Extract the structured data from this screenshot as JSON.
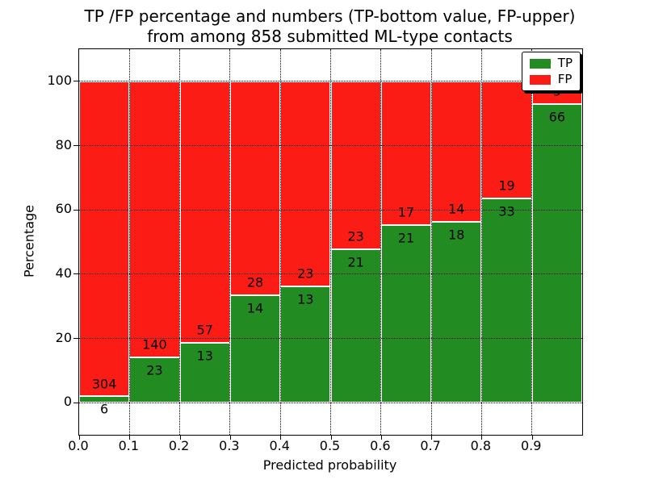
{
  "title": {
    "line1": "TP /FP percentage and numbers (TP-bottom value, FP-upper)",
    "line2": "from among 858 submitted ML-type contacts"
  },
  "axes": {
    "xlabel": "Predicted probability",
    "ylabel": "Percentage"
  },
  "legend": {
    "position": "upper right",
    "entries": [
      {
        "label": "TP",
        "color": "#228b22"
      },
      {
        "label": "FP",
        "color": "#fb1d15"
      }
    ]
  },
  "colors": {
    "tp": "#228b22",
    "fp": "#fb1d15",
    "grid": "#000000",
    "frame": "#000000",
    "background": "#ffffff",
    "bar_edge": "#ffffff",
    "text": "#000000"
  },
  "chart_data": {
    "type": "bar",
    "subtype": "stacked-percentage",
    "title": "TP /FP percentage and numbers (TP-bottom value, FP-upper) from among 858 submitted ML-type contacts",
    "xlabel": "Predicted probability",
    "ylabel": "Percentage",
    "xlim": [
      0.0,
      1.0
    ],
    "ylim": [
      -10,
      110
    ],
    "grid": true,
    "legend_position": "upper right",
    "x_tick_labels": [
      "0.0",
      "0.1",
      "0.2",
      "0.3",
      "0.4",
      "0.5",
      "0.6",
      "0.7",
      "0.8",
      "0.9"
    ],
    "y_tick_values": [
      0,
      20,
      40,
      60,
      80,
      100
    ],
    "bin_edges": [
      0.0,
      0.1,
      0.2,
      0.3,
      0.4,
      0.5,
      0.6,
      0.7,
      0.8,
      0.9,
      1.0
    ],
    "categories": [
      "0.0-0.1",
      "0.1-0.2",
      "0.2-0.3",
      "0.3-0.4",
      "0.4-0.5",
      "0.5-0.6",
      "0.6-0.7",
      "0.7-0.8",
      "0.8-0.9",
      "0.9-1.0"
    ],
    "series": [
      {
        "name": "TP",
        "color": "#228b22",
        "counts": [
          6,
          23,
          13,
          14,
          13,
          21,
          21,
          18,
          33,
          66
        ]
      },
      {
        "name": "FP",
        "color": "#fb1d15",
        "counts": [
          304,
          140,
          57,
          28,
          23,
          23,
          17,
          14,
          19,
          5
        ]
      }
    ],
    "total_contacts": 858,
    "tp_percent_heights": [
      1.9,
      14.1,
      18.6,
      33.3,
      36.1,
      47.7,
      55.3,
      56.3,
      63.5,
      93.0
    ]
  }
}
